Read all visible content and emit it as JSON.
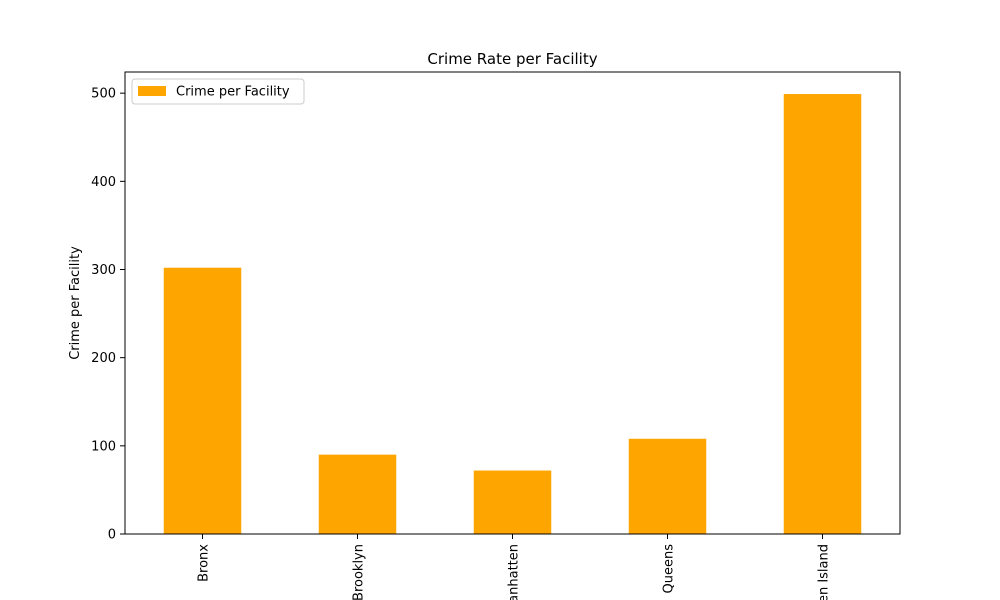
{
  "chart_data": {
    "type": "bar",
    "title": "Crime Rate per Facility",
    "xlabel": "",
    "ylabel": "Crime per Facility",
    "categories": [
      "Bronx",
      "Brooklyn",
      "Manhatten",
      "Queens",
      "Staten Island"
    ],
    "series": [
      {
        "name": "Crime per Facility",
        "values": [
          302,
          90,
          72,
          108,
          499
        ],
        "color": "#ffa500"
      }
    ],
    "ylim": [
      0,
      524
    ],
    "yticks": [
      0,
      100,
      200,
      300,
      400,
      500
    ],
    "legend": {
      "position": "top-left",
      "label": "Crime per Facility"
    },
    "grid": false
  }
}
